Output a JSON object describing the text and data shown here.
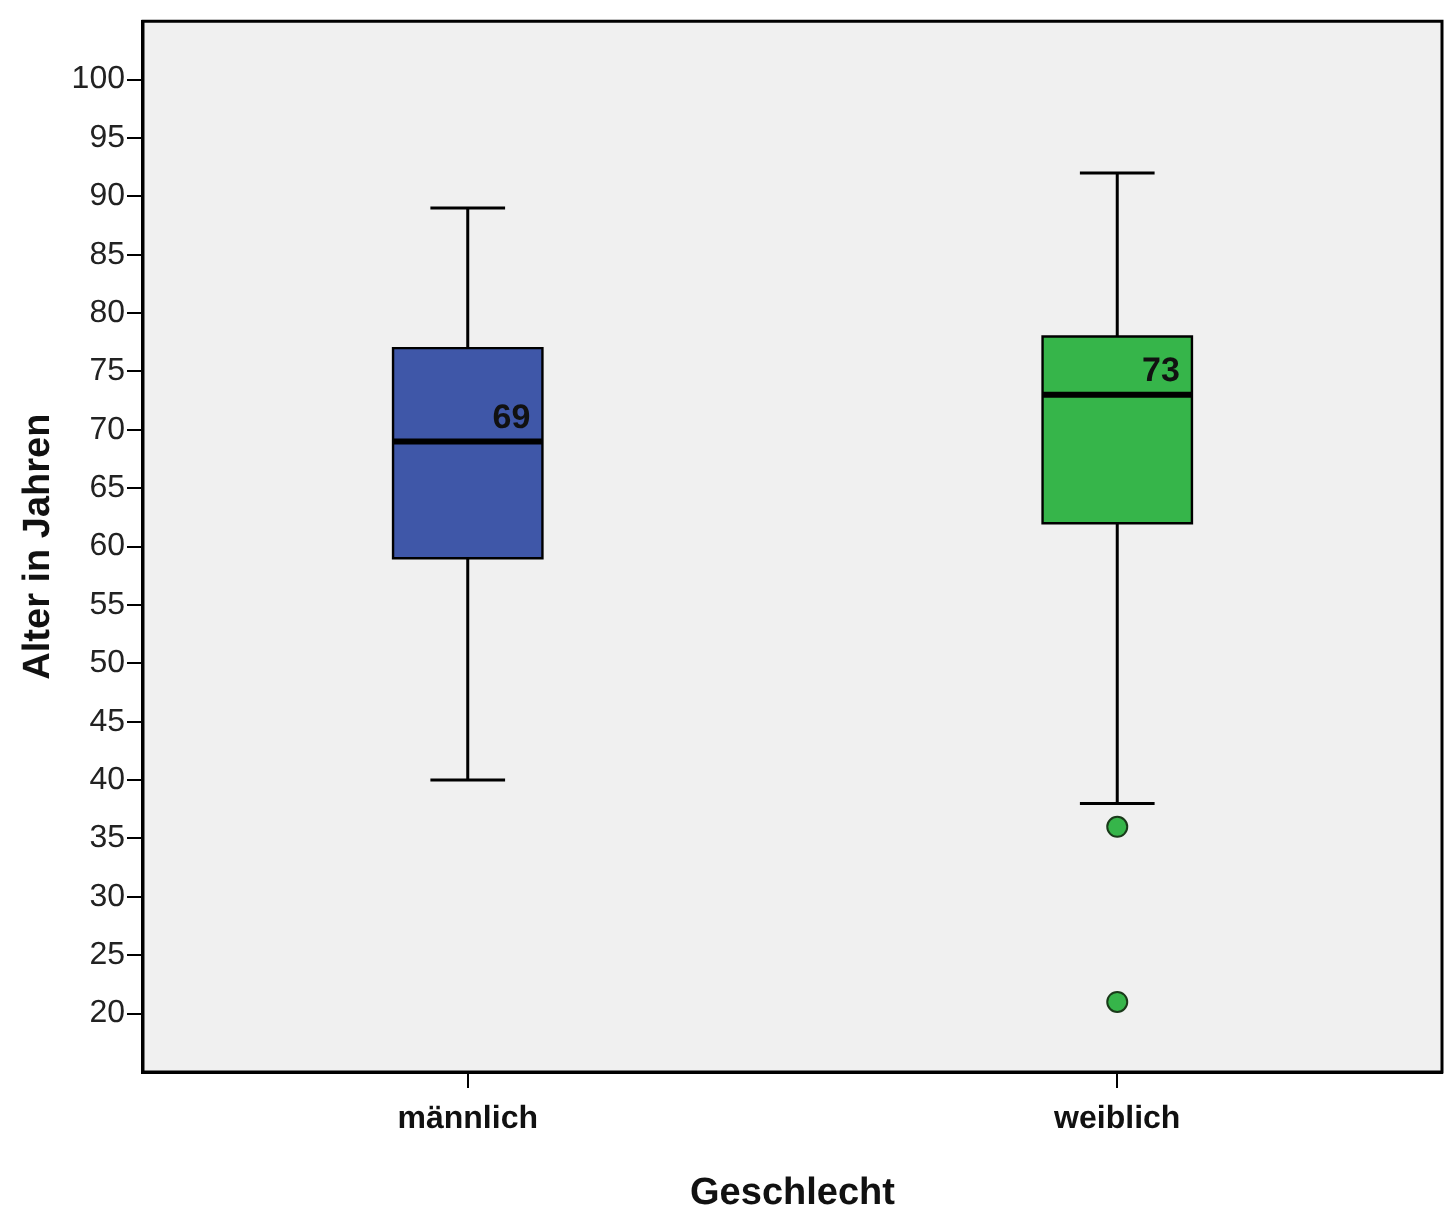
{
  "chart_data": {
    "type": "box",
    "xlabel": "Geschlecht",
    "ylabel": "Alter in Jahren",
    "categories": [
      "männlich",
      "weiblich"
    ],
    "boxes": [
      {
        "low": 40,
        "q1": 59,
        "median": 69,
        "q3": 77,
        "high": 89
      },
      {
        "low": 38,
        "q1": 62,
        "median": 73,
        "q3": 78,
        "high": 92,
        "outliers": [
          36,
          21
        ]
      }
    ],
    "colors": [
      "#3f57a8",
      "#36b54a"
    ],
    "ylim": [
      15,
      105
    ],
    "yticks": [
      20,
      25,
      30,
      35,
      40,
      45,
      50,
      55,
      60,
      65,
      70,
      75,
      80,
      85,
      90,
      95,
      100
    ],
    "annotations": [
      {
        "text": "69",
        "x": "männlich",
        "y": 69
      },
      {
        "text": "73",
        "x": "weiblich",
        "y": 73
      }
    ]
  }
}
